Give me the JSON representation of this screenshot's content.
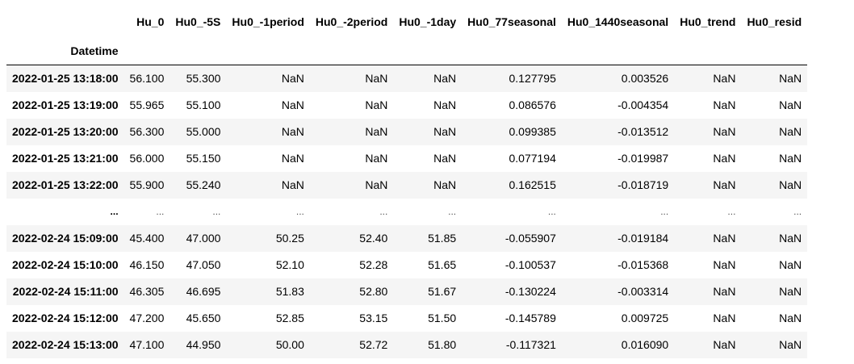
{
  "table": {
    "index_name": "Datetime",
    "columns": [
      "Hu_0",
      "Hu0_-5S",
      "Hu0_-1period",
      "Hu0_-2period",
      "Hu0_-1day",
      "Hu0_77seasonal",
      "Hu0_1440seasonal",
      "Hu0_trend",
      "Hu0_resid"
    ],
    "rows": [
      {
        "index": "2022-01-25 13:18:00",
        "cells": [
          "56.100",
          "55.300",
          "NaN",
          "NaN",
          "NaN",
          "0.127795",
          "0.003526",
          "NaN",
          "NaN"
        ]
      },
      {
        "index": "2022-01-25 13:19:00",
        "cells": [
          "55.965",
          "55.100",
          "NaN",
          "NaN",
          "NaN",
          "0.086576",
          "-0.004354",
          "NaN",
          "NaN"
        ]
      },
      {
        "index": "2022-01-25 13:20:00",
        "cells": [
          "56.300",
          "55.000",
          "NaN",
          "NaN",
          "NaN",
          "0.099385",
          "-0.013512",
          "NaN",
          "NaN"
        ]
      },
      {
        "index": "2022-01-25 13:21:00",
        "cells": [
          "56.000",
          "55.150",
          "NaN",
          "NaN",
          "NaN",
          "0.077194",
          "-0.019987",
          "NaN",
          "NaN"
        ]
      },
      {
        "index": "2022-01-25 13:22:00",
        "cells": [
          "55.900",
          "55.240",
          "NaN",
          "NaN",
          "NaN",
          "0.162515",
          "-0.018719",
          "NaN",
          "NaN"
        ]
      },
      {
        "index": "...",
        "cells": [
          "...",
          "...",
          "...",
          "...",
          "...",
          "...",
          "...",
          "...",
          "..."
        ]
      },
      {
        "index": "2022-02-24 15:09:00",
        "cells": [
          "45.400",
          "47.000",
          "50.25",
          "52.40",
          "51.85",
          "-0.055907",
          "-0.019184",
          "NaN",
          "NaN"
        ]
      },
      {
        "index": "2022-02-24 15:10:00",
        "cells": [
          "46.150",
          "47.050",
          "52.10",
          "52.28",
          "51.65",
          "-0.100537",
          "-0.015368",
          "NaN",
          "NaN"
        ]
      },
      {
        "index": "2022-02-24 15:11:00",
        "cells": [
          "46.305",
          "46.695",
          "51.83",
          "52.80",
          "51.67",
          "-0.130224",
          "-0.003314",
          "NaN",
          "NaN"
        ]
      },
      {
        "index": "2022-02-24 15:12:00",
        "cells": [
          "47.200",
          "45.650",
          "52.85",
          "53.15",
          "51.50",
          "-0.145789",
          "0.009725",
          "NaN",
          "NaN"
        ]
      },
      {
        "index": "2022-02-24 15:13:00",
        "cells": [
          "47.100",
          "44.950",
          "50.00",
          "52.72",
          "51.80",
          "-0.117321",
          "0.016090",
          "NaN",
          "NaN"
        ]
      }
    ]
  }
}
